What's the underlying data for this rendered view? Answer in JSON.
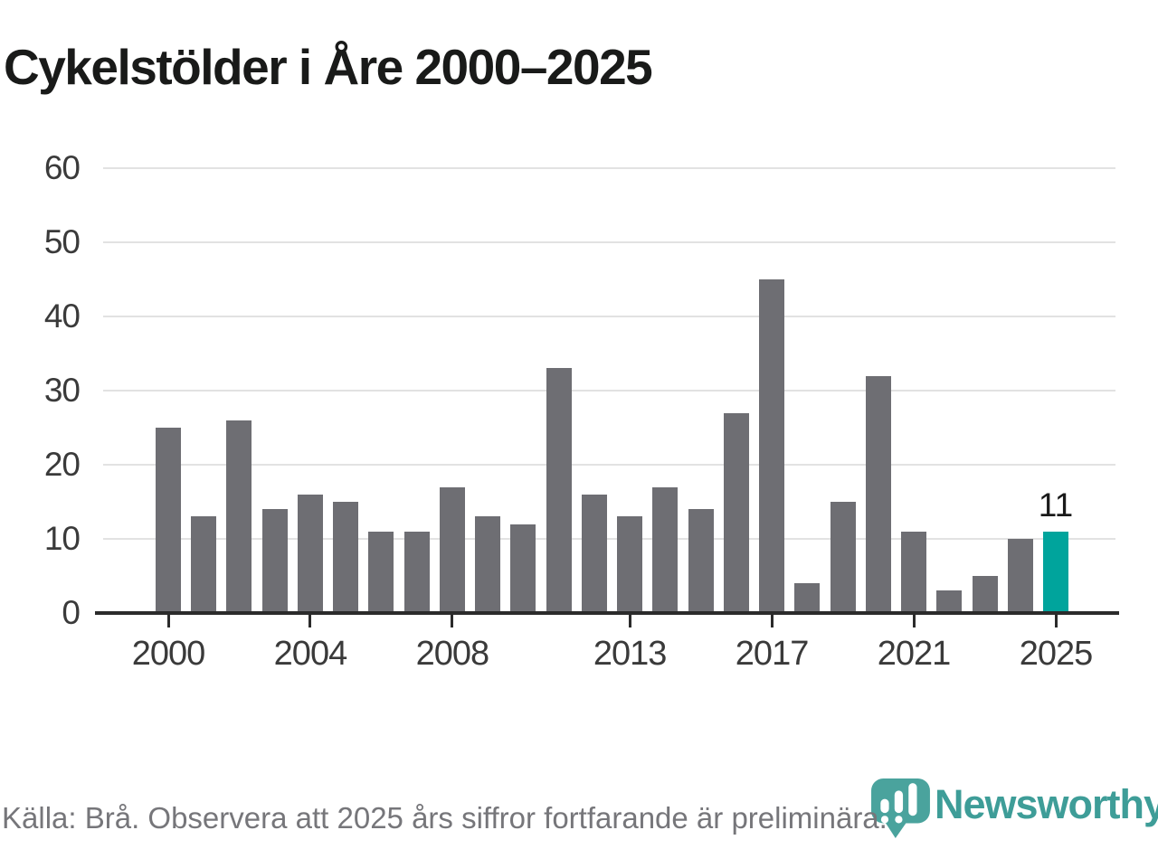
{
  "title": "Cykelstölder i Åre 2000–2025",
  "footer": {
    "source": "Källa: Brå. Observera att 2025 års siffror fortfarande är preliminära."
  },
  "logo": {
    "name": "Newsworthy",
    "icon": "newsworthy-pin-icon",
    "text_color": "#3e9d98",
    "pin_color": "#4aa39d"
  },
  "colors": {
    "background": "#ffffff",
    "title": "#191a19",
    "bar": "#6e6e73",
    "highlight": "#00a49c",
    "gridline": "#e2e2e2",
    "axis": "#2b2b2b",
    "tick_label": "#3a3a3a",
    "source_text": "#76767a"
  },
  "chart_data": {
    "type": "bar",
    "title": "Cykelstölder i Åre 2000–2025",
    "xlabel": "",
    "ylabel": "",
    "x": [
      2000,
      2001,
      2002,
      2003,
      2004,
      2005,
      2006,
      2007,
      2008,
      2009,
      2010,
      2011,
      2012,
      2013,
      2014,
      2015,
      2016,
      2017,
      2018,
      2019,
      2020,
      2021,
      2022,
      2023,
      2024,
      2025
    ],
    "values": [
      25,
      13,
      26,
      14,
      16,
      15,
      11,
      11,
      17,
      13,
      12,
      33,
      16,
      13,
      17,
      14,
      27,
      45,
      4,
      15,
      32,
      11,
      3,
      5,
      10,
      11
    ],
    "highlight": {
      "year": 2025,
      "value": 11,
      "label": "11"
    },
    "ylim": [
      0,
      60
    ],
    "y_ticks": [
      0,
      10,
      20,
      30,
      40,
      50,
      60
    ],
    "x_ticks": [
      2000,
      2004,
      2008,
      2013,
      2017,
      2021,
      2025
    ],
    "grid": true,
    "legend_position": "none"
  }
}
